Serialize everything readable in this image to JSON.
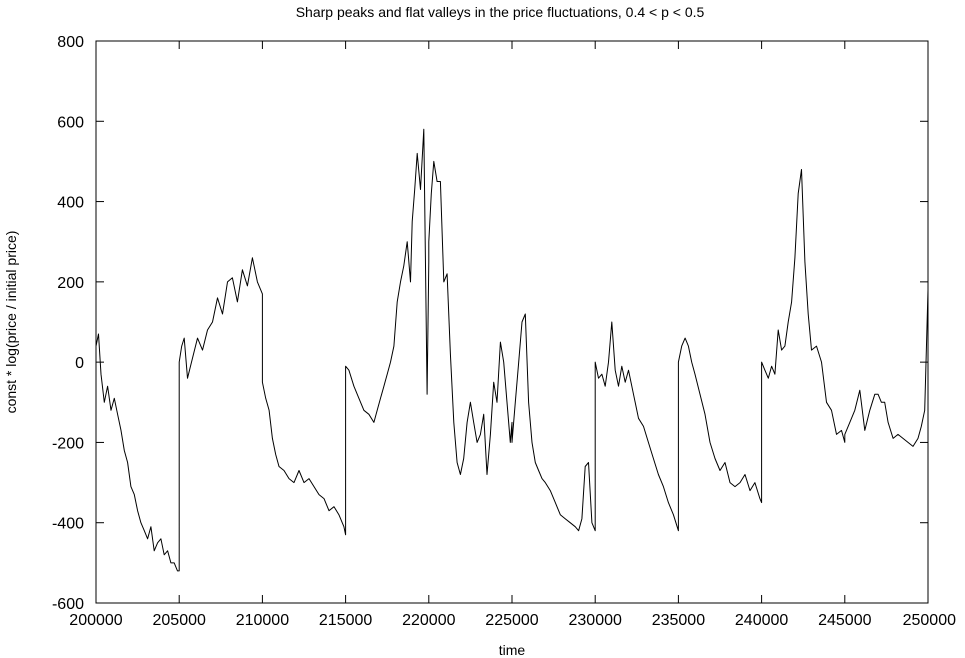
{
  "chart_data": {
    "type": "line",
    "title": "Sharp peaks and flat valleys in the price fluctuations, 0.4 < p < 0.5",
    "xlabel": "time",
    "ylabel": "const * log(price / initial price)",
    "xlim": [
      200000,
      250000
    ],
    "ylim": [
      -600,
      800
    ],
    "xticks": [
      200000,
      205000,
      210000,
      215000,
      220000,
      225000,
      230000,
      235000,
      240000,
      245000,
      250000
    ],
    "yticks": [
      -600,
      -400,
      -200,
      0,
      200,
      400,
      600,
      800
    ],
    "grid": false,
    "legend": "none",
    "line_color": "#000000",
    "series": [
      {
        "x": [
          200000,
          200150,
          200300,
          200500,
          200700,
          200900,
          201100,
          201300,
          201500,
          201700,
          201900,
          202100,
          202300,
          202500,
          202700,
          202900,
          203100,
          203300,
          203500,
          203700,
          203900,
          204100,
          204300,
          204500,
          204700,
          204900,
          205000,
          205000,
          205150,
          205300,
          205500,
          205800,
          206100,
          206400,
          206700,
          207000,
          207300,
          207600,
          207900,
          208200,
          208500,
          208800,
          209100,
          209400,
          209700,
          210000,
          210000,
          210200,
          210400,
          210600,
          210800,
          211000,
          211300,
          211600,
          211900,
          212200,
          212500,
          212800,
          213100,
          213400,
          213700,
          214000,
          214300,
          214600,
          214900,
          215000,
          215000,
          215200,
          215500,
          215800,
          216100,
          216400,
          216700,
          216900,
          217100,
          217300,
          217500,
          217700,
          217900,
          218100,
          218300,
          218500,
          218700,
          218900,
          219000,
          219150,
          219300,
          219500,
          219700,
          219900,
          220000,
          220000,
          220150,
          220300,
          220500,
          220700,
          220900,
          221100,
          221300,
          221500,
          221700,
          221900,
          222100,
          222300,
          222500,
          222700,
          222900,
          223100,
          223300,
          223500,
          223700,
          223900,
          224100,
          224300,
          224500,
          224700,
          224900,
          225000,
          225000,
          225200,
          225400,
          225600,
          225800,
          226000,
          226200,
          226400,
          226600,
          226800,
          227000,
          227300,
          227600,
          227900,
          228200,
          228500,
          228800,
          229000,
          229200,
          229400,
          229600,
          229800,
          230000,
          230000,
          230200,
          230400,
          230600,
          230800,
          231000,
          231200,
          231400,
          231600,
          231800,
          232000,
          232300,
          232600,
          232900,
          233200,
          233500,
          233800,
          234100,
          234400,
          234700,
          235000,
          235000,
          235200,
          235400,
          235600,
          235800,
          236000,
          236300,
          236600,
          236900,
          237200,
          237500,
          237800,
          238100,
          238400,
          238700,
          239000,
          239300,
          239600,
          239900,
          240000,
          240000,
          240200,
          240400,
          240600,
          240800,
          241000,
          241200,
          241400,
          241600,
          241800,
          242000,
          242200,
          242400,
          242600,
          242800,
          243000,
          243300,
          243600,
          243900,
          244200,
          244500,
          244800,
          245000,
          245000,
          245300,
          245600,
          245900,
          246200,
          246500,
          246800,
          247000,
          247200,
          247400,
          247600,
          247900,
          248200,
          248500,
          248800,
          249100,
          249400,
          249600,
          249800,
          250000
        ],
        "values": [
          40,
          70,
          -30,
          -100,
          -60,
          -120,
          -90,
          -130,
          -170,
          -220,
          -250,
          -310,
          -330,
          -370,
          -400,
          -420,
          -440,
          -410,
          -470,
          -450,
          -440,
          -480,
          -470,
          -500,
          -500,
          -520,
          -520,
          0,
          40,
          60,
          -40,
          10,
          60,
          30,
          80,
          100,
          160,
          120,
          200,
          210,
          150,
          230,
          190,
          260,
          200,
          170,
          -50,
          -90,
          -120,
          -190,
          -230,
          -260,
          -270,
          -290,
          -300,
          -270,
          -300,
          -290,
          -310,
          -330,
          -340,
          -370,
          -360,
          -380,
          -410,
          -430,
          -10,
          -20,
          -60,
          -90,
          -120,
          -130,
          -150,
          -120,
          -90,
          -60,
          -30,
          0,
          40,
          150,
          200,
          240,
          300,
          200,
          350,
          430,
          520,
          430,
          580,
          -80,
          250,
          300,
          420,
          500,
          450,
          450,
          200,
          220,
          20,
          -150,
          -250,
          -280,
          -240,
          -150,
          -100,
          -150,
          -200,
          -180,
          -130,
          -280,
          -180,
          -50,
          -100,
          50,
          0,
          -100,
          -200,
          -150,
          -200,
          -100,
          0,
          100,
          120,
          -100,
          -200,
          -250,
          -270,
          -290,
          -300,
          -320,
          -350,
          -380,
          -390,
          -400,
          -410,
          -420,
          -390,
          -260,
          -250,
          -400,
          -420,
          0,
          -40,
          -30,
          -60,
          0,
          100,
          -20,
          -60,
          -10,
          -50,
          -20,
          -80,
          -140,
          -160,
          -200,
          -240,
          -280,
          -310,
          -350,
          -380,
          -420,
          0,
          40,
          60,
          40,
          0,
          -30,
          -80,
          -130,
          -200,
          -240,
          -270,
          -250,
          -300,
          -310,
          -300,
          -280,
          -320,
          -300,
          -340,
          -350,
          0,
          -20,
          -40,
          -10,
          -30,
          80,
          30,
          40,
          100,
          150,
          260,
          420,
          480,
          250,
          120,
          30,
          40,
          0,
          -100,
          -120,
          -180,
          -170,
          -200,
          -180,
          -150,
          -120,
          -70,
          -170,
          -120,
          -80,
          -80,
          -100,
          -100,
          -150,
          -190,
          -180,
          -190,
          -200,
          -210,
          -190,
          -160,
          -120,
          180
        ]
      }
    ]
  }
}
